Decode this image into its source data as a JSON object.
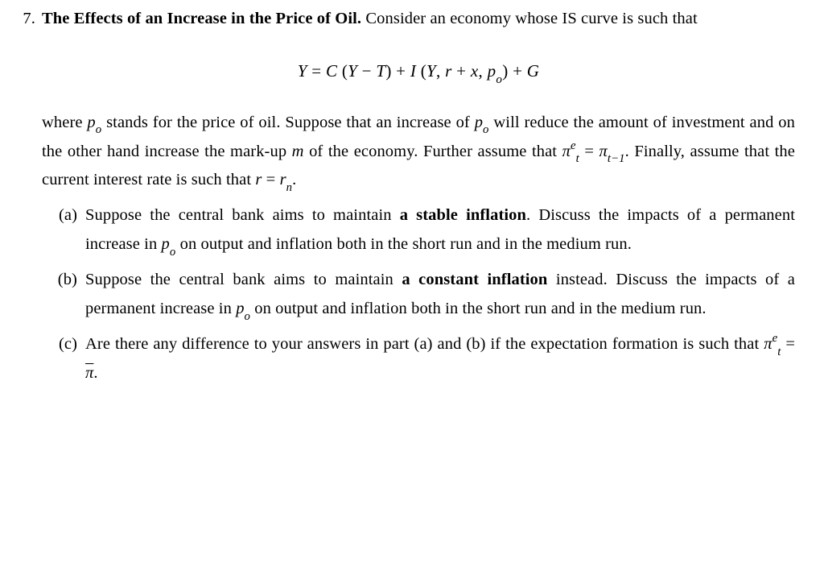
{
  "colors": {
    "text": "#000000",
    "background": "#ffffff"
  },
  "typography": {
    "body_font": "Palatino Linotype, Book Antiqua, Palatino, Georgia, serif",
    "body_size_pt": 15,
    "line_height": 1.75,
    "bold_weight": 700
  },
  "problem": {
    "number": "7.",
    "title_bold": "The Effects of an Increase in the Price of Oil.",
    "intro_after_title": " Consider an economy whose IS curve is such that",
    "equation": {
      "lhs_var": "Y",
      "eq": " = ",
      "C": "C",
      "open1": " (",
      "Y1": "Y",
      "minus": " − ",
      "T": "T",
      "close1": ")",
      "plus1": " + ",
      "I": "I",
      "open2": " (",
      "Y2": "Y",
      "comma1": ", ",
      "r": "r",
      "plus2": " + ",
      "x": "x",
      "comma2": ", ",
      "p": "p",
      "p_sub": "o",
      "close2": ")",
      "plus3": " + ",
      "G": "G"
    },
    "where1_a": "where ",
    "po_var": "p",
    "po_sub": "o",
    "where1_b": " stands for the price of oil. Suppose that an increase of ",
    "where1_c": " will reduce the amount of investment and on the other hand increase the mark-up ",
    "m_var": "m",
    "where1_d": " of the economy. Further assume that ",
    "pi": "π",
    "pi_sup": "e",
    "pi_sub": "t",
    "eqtxt": " = ",
    "pi2": "π",
    "pi2_sub": "t−1",
    "where1_e": ". Finally, assume that the current interest rate is such that ",
    "r_eq": "r",
    "eqtxt2": " = ",
    "rn": "r",
    "rn_sub": "n",
    "dot": "."
  },
  "parts": {
    "a": {
      "label": "(a)",
      "t1": "Suppose the central bank aims to maintain ",
      "bold": "a stable inflation",
      "t2": ". Discuss the impacts of a permanent increase in ",
      "t3": " on output and inflation both in the short run and in the medium run."
    },
    "b": {
      "label": "(b)",
      "t1": "Suppose the central bank aims to maintain ",
      "bold": "a constant inflation",
      "t2": " instead. Discuss the impacts of a permanent increase in ",
      "t3": " on output and inflation both in the short run and in the medium run."
    },
    "c": {
      "label": "(c)",
      "t1": "Are there any difference to your answers in part (a) and (b) if the expectation formation is such that ",
      "pi": "π",
      "pi_sup": "e",
      "pi_sub": "t",
      "eq": " = ",
      "pibar": "π",
      "dot": "."
    }
  }
}
